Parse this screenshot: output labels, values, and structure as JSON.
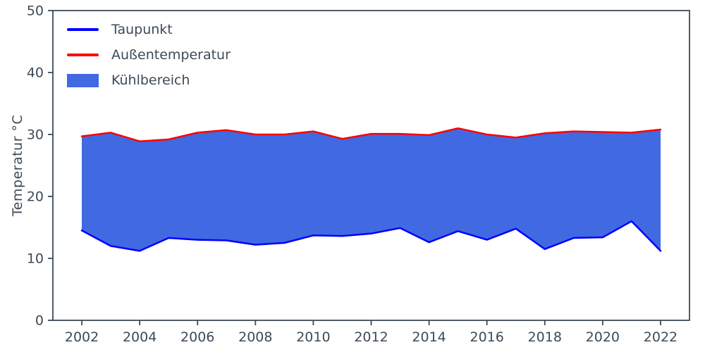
{
  "chart_data": {
    "type": "area",
    "title": "",
    "ylabel": "Temperatur °C",
    "xlabel": "",
    "ylim": [
      0,
      50
    ],
    "xlim": [
      2001,
      2023
    ],
    "yticks": [
      0,
      10,
      20,
      30,
      40,
      50
    ],
    "xticks": [
      2002,
      2004,
      2006,
      2008,
      2010,
      2012,
      2014,
      2016,
      2018,
      2020,
      2022
    ],
    "x": [
      2002,
      2003,
      2004,
      2005,
      2006,
      2007,
      2008,
      2009,
      2010,
      2011,
      2012,
      2013,
      2014,
      2015,
      2016,
      2017,
      2018,
      2019,
      2020,
      2021,
      2022
    ],
    "series": [
      {
        "name": "Taupunkt",
        "color": "#0000ff",
        "values": [
          14.5,
          12.0,
          11.2,
          13.3,
          13.0,
          12.9,
          12.2,
          12.5,
          13.7,
          13.6,
          14.0,
          14.9,
          12.6,
          14.4,
          13.0,
          14.8,
          11.5,
          13.3,
          13.4,
          16.0,
          11.2
        ]
      },
      {
        "name": "Außentemperatur",
        "color": "#ff0000",
        "values": [
          29.7,
          30.3,
          28.9,
          29.2,
          30.3,
          30.7,
          30.0,
          30.0,
          30.5,
          29.3,
          30.1,
          30.1,
          29.9,
          31.0,
          30.0,
          29.5,
          30.2,
          30.5,
          30.4,
          30.3,
          30.8
        ]
      }
    ],
    "fill": {
      "name": "Kühlbereich",
      "color": "#4169e1",
      "between": [
        "Taupunkt",
        "Außentemperatur"
      ]
    },
    "axis_color": "#3e4a56",
    "grid": false,
    "legend_position": "upper-left"
  }
}
